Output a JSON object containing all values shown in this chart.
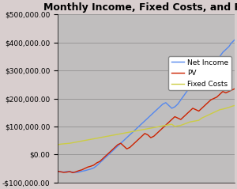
{
  "title": "Monthly Income, Fixed Costs, and PV",
  "n_months": 60,
  "ylim": [
    -100000,
    500000
  ],
  "yticks": [
    -100000,
    0,
    100000,
    200000,
    300000,
    400000,
    500000
  ],
  "plot_bg_color": "#c0bebe",
  "outer_bg_color": "#d8cece",
  "net_income_color": "#5588ee",
  "pv_color": "#cc2200",
  "fixed_costs_color": "#cccc44",
  "legend_labels": [
    "Net Income",
    "PV",
    "Fixed Costs"
  ],
  "title_fontsize": 9,
  "tick_fontsize": 6.5,
  "legend_fontsize": 6.5,
  "net_income_data": [
    -60000,
    -62000,
    -63000,
    -61000,
    -62000,
    -63000,
    -64000,
    -63000,
    -60000,
    -58000,
    -55000,
    -52000,
    -48000,
    -40000,
    -30000,
    -20000,
    -10000,
    0,
    10000,
    20000,
    30000,
    40000,
    50000,
    60000,
    70000,
    80000,
    90000,
    100000,
    110000,
    120000,
    130000,
    140000,
    150000,
    160000,
    170000,
    180000,
    185000,
    175000,
    165000,
    170000,
    180000,
    195000,
    210000,
    225000,
    240000,
    255000,
    270000,
    285000,
    290000,
    280000,
    285000,
    300000,
    320000,
    335000,
    350000,
    365000,
    375000,
    385000,
    400000,
    410000
  ],
  "pv_data": [
    -60000,
    -62000,
    -64000,
    -63000,
    -61000,
    -65000,
    -62000,
    -58000,
    -55000,
    -50000,
    -45000,
    -42000,
    -38000,
    -30000,
    -25000,
    -15000,
    -5000,
    5000,
    15000,
    25000,
    35000,
    40000,
    30000,
    20000,
    25000,
    35000,
    45000,
    55000,
    65000,
    75000,
    70000,
    60000,
    65000,
    75000,
    85000,
    95000,
    105000,
    115000,
    125000,
    135000,
    130000,
    125000,
    135000,
    145000,
    155000,
    165000,
    160000,
    155000,
    165000,
    175000,
    185000,
    195000,
    200000,
    205000,
    215000,
    225000,
    220000,
    225000,
    230000,
    235000
  ],
  "fixed_costs_data": [
    35000,
    37000,
    38000,
    39000,
    40000,
    42000,
    44000,
    46000,
    48000,
    50000,
    52000,
    54000,
    56000,
    58000,
    60000,
    62000,
    64000,
    66000,
    68000,
    70000,
    72000,
    74000,
    76000,
    78000,
    80000,
    82000,
    84000,
    86000,
    88000,
    90000,
    92000,
    94000,
    96000,
    98000,
    100000,
    102000,
    104000,
    106000,
    108000,
    100000,
    102000,
    104000,
    108000,
    112000,
    116000,
    118000,
    120000,
    122000,
    130000,
    135000,
    140000,
    145000,
    150000,
    155000,
    160000,
    162000,
    165000,
    168000,
    172000,
    175000
  ]
}
